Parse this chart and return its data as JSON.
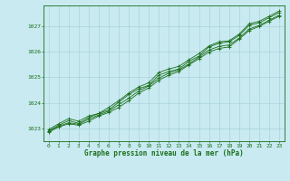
{
  "bg_color": "#c8eaf0",
  "grid_color": "#aad4dc",
  "line_color": "#1a6e1a",
  "marker_color": "#1a6e1a",
  "xlabel": "Graphe pression niveau de la mer (hPa)",
  "xlim": [
    -0.5,
    23.5
  ],
  "ylim": [
    1022.5,
    1027.8
  ],
  "yticks": [
    1023,
    1024,
    1025,
    1026,
    1027
  ],
  "xticks": [
    0,
    1,
    2,
    3,
    4,
    5,
    6,
    7,
    8,
    9,
    10,
    11,
    12,
    13,
    14,
    15,
    16,
    17,
    18,
    19,
    20,
    21,
    22,
    23
  ],
  "series": [
    [
      1022.9,
      1023.12,
      1023.3,
      1023.2,
      1023.42,
      1023.58,
      1023.72,
      1024.02,
      1024.32,
      1024.55,
      1024.68,
      1025.08,
      1025.22,
      1025.32,
      1025.62,
      1025.82,
      1026.18,
      1026.32,
      1026.38,
      1026.62,
      1027.02,
      1027.12,
      1027.32,
      1027.52
    ],
    [
      1022.85,
      1023.05,
      1023.18,
      1023.12,
      1023.28,
      1023.48,
      1023.62,
      1023.82,
      1024.08,
      1024.38,
      1024.58,
      1024.88,
      1025.08,
      1025.22,
      1025.48,
      1025.72,
      1025.98,
      1026.12,
      1026.18,
      1026.48,
      1026.82,
      1026.98,
      1027.18,
      1027.38
    ],
    [
      1022.95,
      1023.18,
      1023.38,
      1023.28,
      1023.48,
      1023.58,
      1023.82,
      1024.08,
      1024.38,
      1024.62,
      1024.78,
      1025.18,
      1025.32,
      1025.42,
      1025.68,
      1025.92,
      1026.22,
      1026.38,
      1026.42,
      1026.68,
      1027.08,
      1027.18,
      1027.38,
      1027.58
    ],
    [
      1022.88,
      1023.08,
      1023.22,
      1023.16,
      1023.36,
      1023.52,
      1023.68,
      1023.92,
      1024.18,
      1024.46,
      1024.66,
      1024.96,
      1025.16,
      1025.28,
      1025.52,
      1025.78,
      1026.06,
      1026.2,
      1026.26,
      1026.52,
      1026.88,
      1027.02,
      1027.22,
      1027.42
    ]
  ]
}
